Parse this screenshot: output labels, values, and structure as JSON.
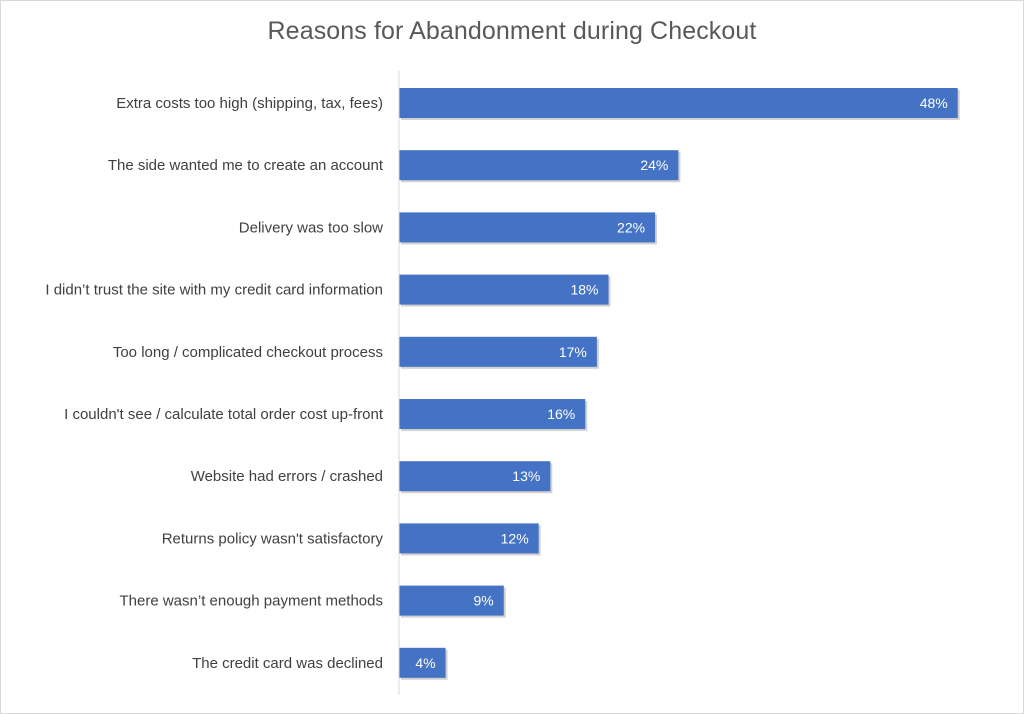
{
  "chart_data": {
    "type": "bar",
    "orientation": "horizontal",
    "title": "Reasons for Abandonment during Checkout",
    "xlabel": "",
    "ylabel": "",
    "value_suffix": "%",
    "xlim": [
      0,
      50
    ],
    "grid": false,
    "legend": "none",
    "colors": {
      "bar": "#4472c4",
      "axis": "#d9d9d9",
      "label": "#404040",
      "title": "#595959"
    },
    "categories": [
      "Extra costs too high (shipping, tax, fees)",
      "The side wanted me to create an account",
      "Delivery was too slow",
      "I didn’t trust the site with my credit card information",
      "Too long / complicated checkout process",
      "I couldn't see / calculate total order cost up-front",
      "Website had errors / crashed",
      "Returns policy wasn't satisfactory",
      "There wasn’t enough payment methods",
      "The credit card was declined"
    ],
    "values": [
      48,
      24,
      22,
      18,
      17,
      16,
      13,
      12,
      9,
      4
    ],
    "data_labels": [
      "48%",
      "24%",
      "22%",
      "18%",
      "17%",
      "16%",
      "13%",
      "12%",
      "9%",
      "4%"
    ]
  }
}
